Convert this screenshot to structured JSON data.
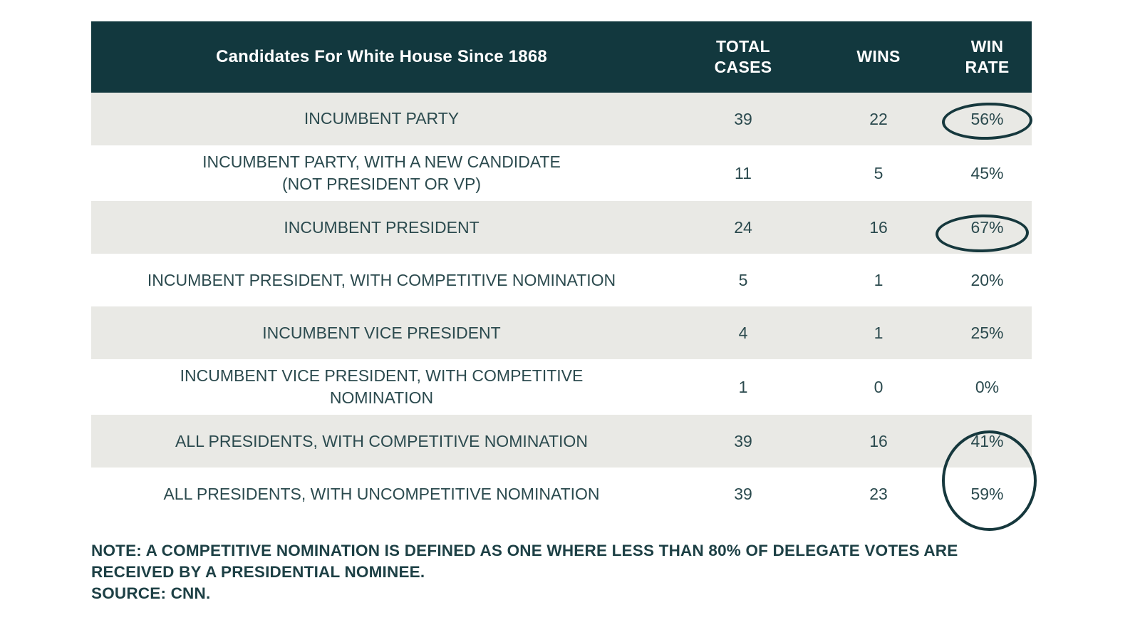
{
  "colors": {
    "header_background": "#12383e",
    "row_alternate": "#e9e9e5",
    "text": "#2b4a4e",
    "circle_stroke": "#16383d"
  },
  "chart_data": {
    "type": "table",
    "title": "Candidates For White House Since 1868",
    "columns": [
      "TOTAL CASES",
      "WINS",
      "WIN RATE"
    ],
    "rows": [
      {
        "label": "INCUMBENT PARTY",
        "total": "39",
        "wins": "22",
        "rate": "56%",
        "circled": true
      },
      {
        "label": [
          "INCUMBENT PARTY, WITH A NEW CANDIDATE",
          "(NOT PRESIDENT OR VP)"
        ],
        "total": "11",
        "wins": "5",
        "rate": "45%",
        "circled": false
      },
      {
        "label": "INCUMBENT PRESIDENT",
        "total": "24",
        "wins": "16",
        "rate": "67%",
        "circled": true
      },
      {
        "label": "INCUMBENT PRESIDENT, WITH COMPETITIVE NOMINATION",
        "total": "5",
        "wins": "1",
        "rate": "20%",
        "circled": false
      },
      {
        "label": "INCUMBENT VICE PRESIDENT",
        "total": "4",
        "wins": "1",
        "rate": "25%",
        "circled": false
      },
      {
        "label": [
          "INCUMBENT VICE PRESIDENT, WITH COMPETITIVE",
          "NOMINATION"
        ],
        "total": "1",
        "wins": "0",
        "rate": "0%",
        "circled": false
      },
      {
        "label": "ALL PRESIDENTS, WITH COMPETITIVE NOMINATION",
        "total": "39",
        "wins": "16",
        "rate": "41%",
        "circled": true
      },
      {
        "label": "ALL PRESIDENTS, WITH UNCOMPETITIVE NOMINATION",
        "total": "39",
        "wins": "23",
        "rate": "59%",
        "circled": true
      }
    ],
    "annotations": [
      "ellipse drawn around 56% win rate (incumbent party)",
      "ellipse drawn around 67% win rate (incumbent president)",
      "large circle drawn around both 41% and 59% win rates (all presidents rows)"
    ],
    "note": "NOTE: A COMPETITIVE NOMINATION IS DEFINED AS ONE WHERE LESS THAN 80% OF DELEGATE VOTES ARE RECEIVED BY A PRESIDENTIAL NOMINEE.",
    "source": "SOURCE: CNN."
  }
}
